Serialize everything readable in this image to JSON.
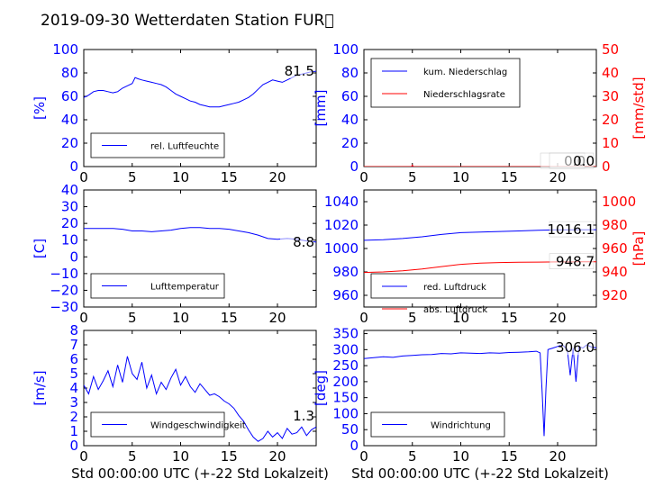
{
  "title": "2019-09-30 Wetterdaten Station FUR\u0000",
  "chart_data": [
    {
      "type": "line",
      "panel": "humidity",
      "xlabel": "",
      "ylabel": "[%]",
      "xlim": [
        0,
        24
      ],
      "ylim": [
        0,
        100
      ],
      "xticks": [
        "0",
        "5",
        "10",
        "15",
        "20"
      ],
      "yticks": [
        "0",
        "20",
        "40",
        "60",
        "80",
        "100"
      ],
      "legend_position": "lower-left",
      "last_value": "81.5",
      "series": [
        {
          "name": "rel. Luftfeuchte",
          "color": "#0000ff",
          "x": [
            0,
            0.5,
            1,
            1.5,
            2,
            2.5,
            3,
            3.5,
            4,
            4.5,
            5,
            5.3,
            5.6,
            6,
            6.5,
            7,
            7.5,
            8,
            8.5,
            9,
            9.5,
            10,
            10.5,
            11,
            11.5,
            12,
            12.5,
            13,
            13.5,
            14,
            14.5,
            15,
            15.5,
            16,
            16.5,
            17,
            17.5,
            18,
            18.5,
            19,
            19.5,
            20,
            20.5,
            21,
            21.5,
            22,
            22.5,
            23,
            23.5,
            24
          ],
          "y": [
            59,
            61,
            64,
            65,
            65,
            64,
            63,
            64,
            67,
            69,
            71,
            76,
            75,
            74,
            73,
            72,
            71,
            70,
            68,
            65,
            62,
            60,
            58,
            56,
            55,
            53,
            52,
            51,
            51,
            51,
            52,
            53,
            54,
            55,
            57,
            59,
            62,
            66,
            70,
            72,
            74,
            73,
            72,
            74,
            76,
            78,
            79,
            80,
            81,
            81.5
          ]
        }
      ]
    },
    {
      "type": "line",
      "panel": "precipitation",
      "xlabel": "",
      "ylabel": "[mm]",
      "ylabel_right": "[mm/std]",
      "xlim": [
        0,
        24
      ],
      "ylim": [
        0,
        100
      ],
      "ylim_right": [
        0,
        50
      ],
      "xticks": [
        "0",
        "5",
        "10",
        "15",
        "20"
      ],
      "yticks": [
        "0",
        "20",
        "40",
        "60",
        "80",
        "100"
      ],
      "yticks_right": [
        "0",
        "10",
        "20",
        "30",
        "40",
        "50"
      ],
      "legend_position": "top-left",
      "last_values": [
        "0.0",
        "0.0"
      ],
      "series": [
        {
          "name": "kum. Niederschlag",
          "color": "#0000ff",
          "axis": "left",
          "x": [
            0,
            24
          ],
          "y": [
            0,
            0
          ]
        },
        {
          "name": "Niederschlagsrate",
          "color": "#ff0000",
          "axis": "right",
          "x": [
            0,
            4.9,
            5.0,
            5.1,
            24
          ],
          "y": [
            0,
            0,
            0.6,
            0,
            0
          ]
        }
      ]
    },
    {
      "type": "line",
      "panel": "temperature",
      "xlabel": "",
      "ylabel": "[C]",
      "xlim": [
        0,
        24
      ],
      "ylim": [
        -30,
        40
      ],
      "xticks": [
        "0",
        "5",
        "10",
        "15",
        "20"
      ],
      "yticks": [
        "−30",
        "−20",
        "−10",
        "0",
        "10",
        "20",
        "30",
        "40"
      ],
      "legend_position": "lower-left",
      "last_value": "8.8",
      "series": [
        {
          "name": "Lufttemperatur",
          "color": "#0000ff",
          "x": [
            0,
            1,
            2,
            3,
            4,
            5,
            5.5,
            6,
            7,
            8,
            9,
            10,
            11,
            12,
            13,
            14,
            15,
            16,
            17,
            18,
            19,
            20,
            21,
            22,
            23,
            24
          ],
          "y": [
            17,
            17,
            17,
            17,
            16.5,
            15.5,
            15.5,
            15.5,
            15,
            15.5,
            16,
            17,
            17.5,
            17.5,
            17,
            17,
            16.5,
            15.5,
            14.5,
            13,
            11,
            10.5,
            11,
            10.5,
            9.5,
            8.8
          ]
        }
      ]
    },
    {
      "type": "line",
      "panel": "pressure",
      "xlabel": "",
      "ylabel": "",
      "ylabel_right": "[hPa]",
      "xlim": [
        0,
        24
      ],
      "ylim": [
        950,
        1050
      ],
      "ylim_right": [
        910,
        1010
      ],
      "xticks": [
        "0",
        "5",
        "10",
        "15",
        "20"
      ],
      "yticks": [
        "960",
        "980",
        "1000",
        "1020",
        "1040"
      ],
      "yticks_right": [
        "920",
        "940",
        "960",
        "980",
        "1000"
      ],
      "legend_position": "lower-left",
      "last_values": [
        "1016.1",
        "948.7"
      ],
      "series": [
        {
          "name": "red. Luftdruck",
          "color": "#0000ff",
          "axis": "left",
          "x": [
            0,
            2,
            4,
            6,
            8,
            10,
            12,
            14,
            16,
            18,
            20,
            22,
            24
          ],
          "y": [
            1007,
            1007.5,
            1008.5,
            1010,
            1012,
            1013.5,
            1014,
            1014.5,
            1015,
            1015.5,
            1016,
            1016,
            1016.1
          ]
        },
        {
          "name": "abs. Luftdruck",
          "color": "#ff0000",
          "axis": "right",
          "x": [
            0,
            2,
            4,
            6,
            8,
            10,
            12,
            14,
            16,
            18,
            20,
            22,
            24
          ],
          "y": [
            939.5,
            940,
            941,
            942.5,
            944.5,
            946.5,
            947.5,
            948,
            948.2,
            948.4,
            948.5,
            948.6,
            948.7
          ]
        }
      ]
    },
    {
      "type": "line",
      "panel": "windspeed",
      "xlabel": "Std 00:00:00 UTC (+-22 Std Lokalzeit)",
      "ylabel": "[m/s]",
      "xlim": [
        0,
        24
      ],
      "ylim": [
        0,
        8
      ],
      "xticks": [
        "0",
        "5",
        "10",
        "15",
        "20"
      ],
      "yticks": [
        "0",
        "1",
        "2",
        "3",
        "4",
        "5",
        "6",
        "7",
        "8"
      ],
      "legend_position": "lower-left",
      "last_value": "1.3",
      "series": [
        {
          "name": "Windgeschwindigkeit",
          "color": "#0000ff",
          "x": [
            0,
            0.5,
            1,
            1.5,
            2,
            2.5,
            3,
            3.5,
            4,
            4.5,
            5,
            5.5,
            6,
            6.5,
            7,
            7.5,
            8,
            8.5,
            9,
            9.5,
            10,
            10.5,
            11,
            11.5,
            12,
            12.5,
            13,
            13.5,
            14,
            14.5,
            15,
            15.5,
            16,
            16.5,
            17,
            17.5,
            18,
            18.5,
            19,
            19.5,
            20,
            20.5,
            21,
            21.5,
            22,
            22.5,
            23,
            23.5,
            24
          ],
          "y": [
            4.2,
            3.6,
            4.8,
            3.9,
            4.5,
            5.2,
            4.1,
            5.6,
            4.4,
            6.2,
            5.0,
            4.6,
            5.8,
            4.0,
            4.9,
            3.6,
            4.4,
            3.9,
            4.7,
            5.3,
            4.2,
            4.8,
            4.1,
            3.7,
            4.3,
            3.9,
            3.5,
            3.6,
            3.4,
            3.1,
            2.9,
            2.6,
            2.1,
            1.7,
            1.1,
            0.6,
            0.3,
            0.5,
            1.0,
            0.6,
            0.9,
            0.5,
            1.2,
            0.8,
            0.9,
            1.3,
            0.7,
            1.1,
            1.3
          ]
        }
      ]
    },
    {
      "type": "line",
      "panel": "winddirection",
      "xlabel": "Std 00:00:00 UTC (+-22 Std Lokalzeit)",
      "ylabel": "[deg]",
      "xlim": [
        0,
        24
      ],
      "ylim": [
        0,
        360
      ],
      "xticks": [
        "0",
        "5",
        "10",
        "15",
        "20"
      ],
      "yticks": [
        "0",
        "50",
        "100",
        "150",
        "200",
        "250",
        "300",
        "350"
      ],
      "legend_position": "lower-left",
      "last_value": "306.0",
      "series": [
        {
          "name": "Windrichtung",
          "color": "#0000ff",
          "x": [
            0,
            1,
            2,
            3,
            4,
            5,
            6,
            7,
            8,
            9,
            10,
            11,
            12,
            13,
            14,
            15,
            16,
            17,
            17.8,
            18.2,
            18.4,
            18.6,
            18.8,
            19,
            19.5,
            20,
            20.5,
            21,
            21.3,
            21.6,
            21.9,
            22.2,
            22.6,
            23,
            23.5,
            24
          ],
          "y": [
            272,
            275,
            278,
            276,
            280,
            282,
            284,
            285,
            288,
            287,
            290,
            289,
            288,
            290,
            289,
            291,
            292,
            293,
            295,
            290,
            170,
            30,
            180,
            300,
            305,
            310,
            315,
            300,
            220,
            305,
            200,
            310,
            305,
            315,
            308,
            306
          ]
        }
      ]
    }
  ]
}
